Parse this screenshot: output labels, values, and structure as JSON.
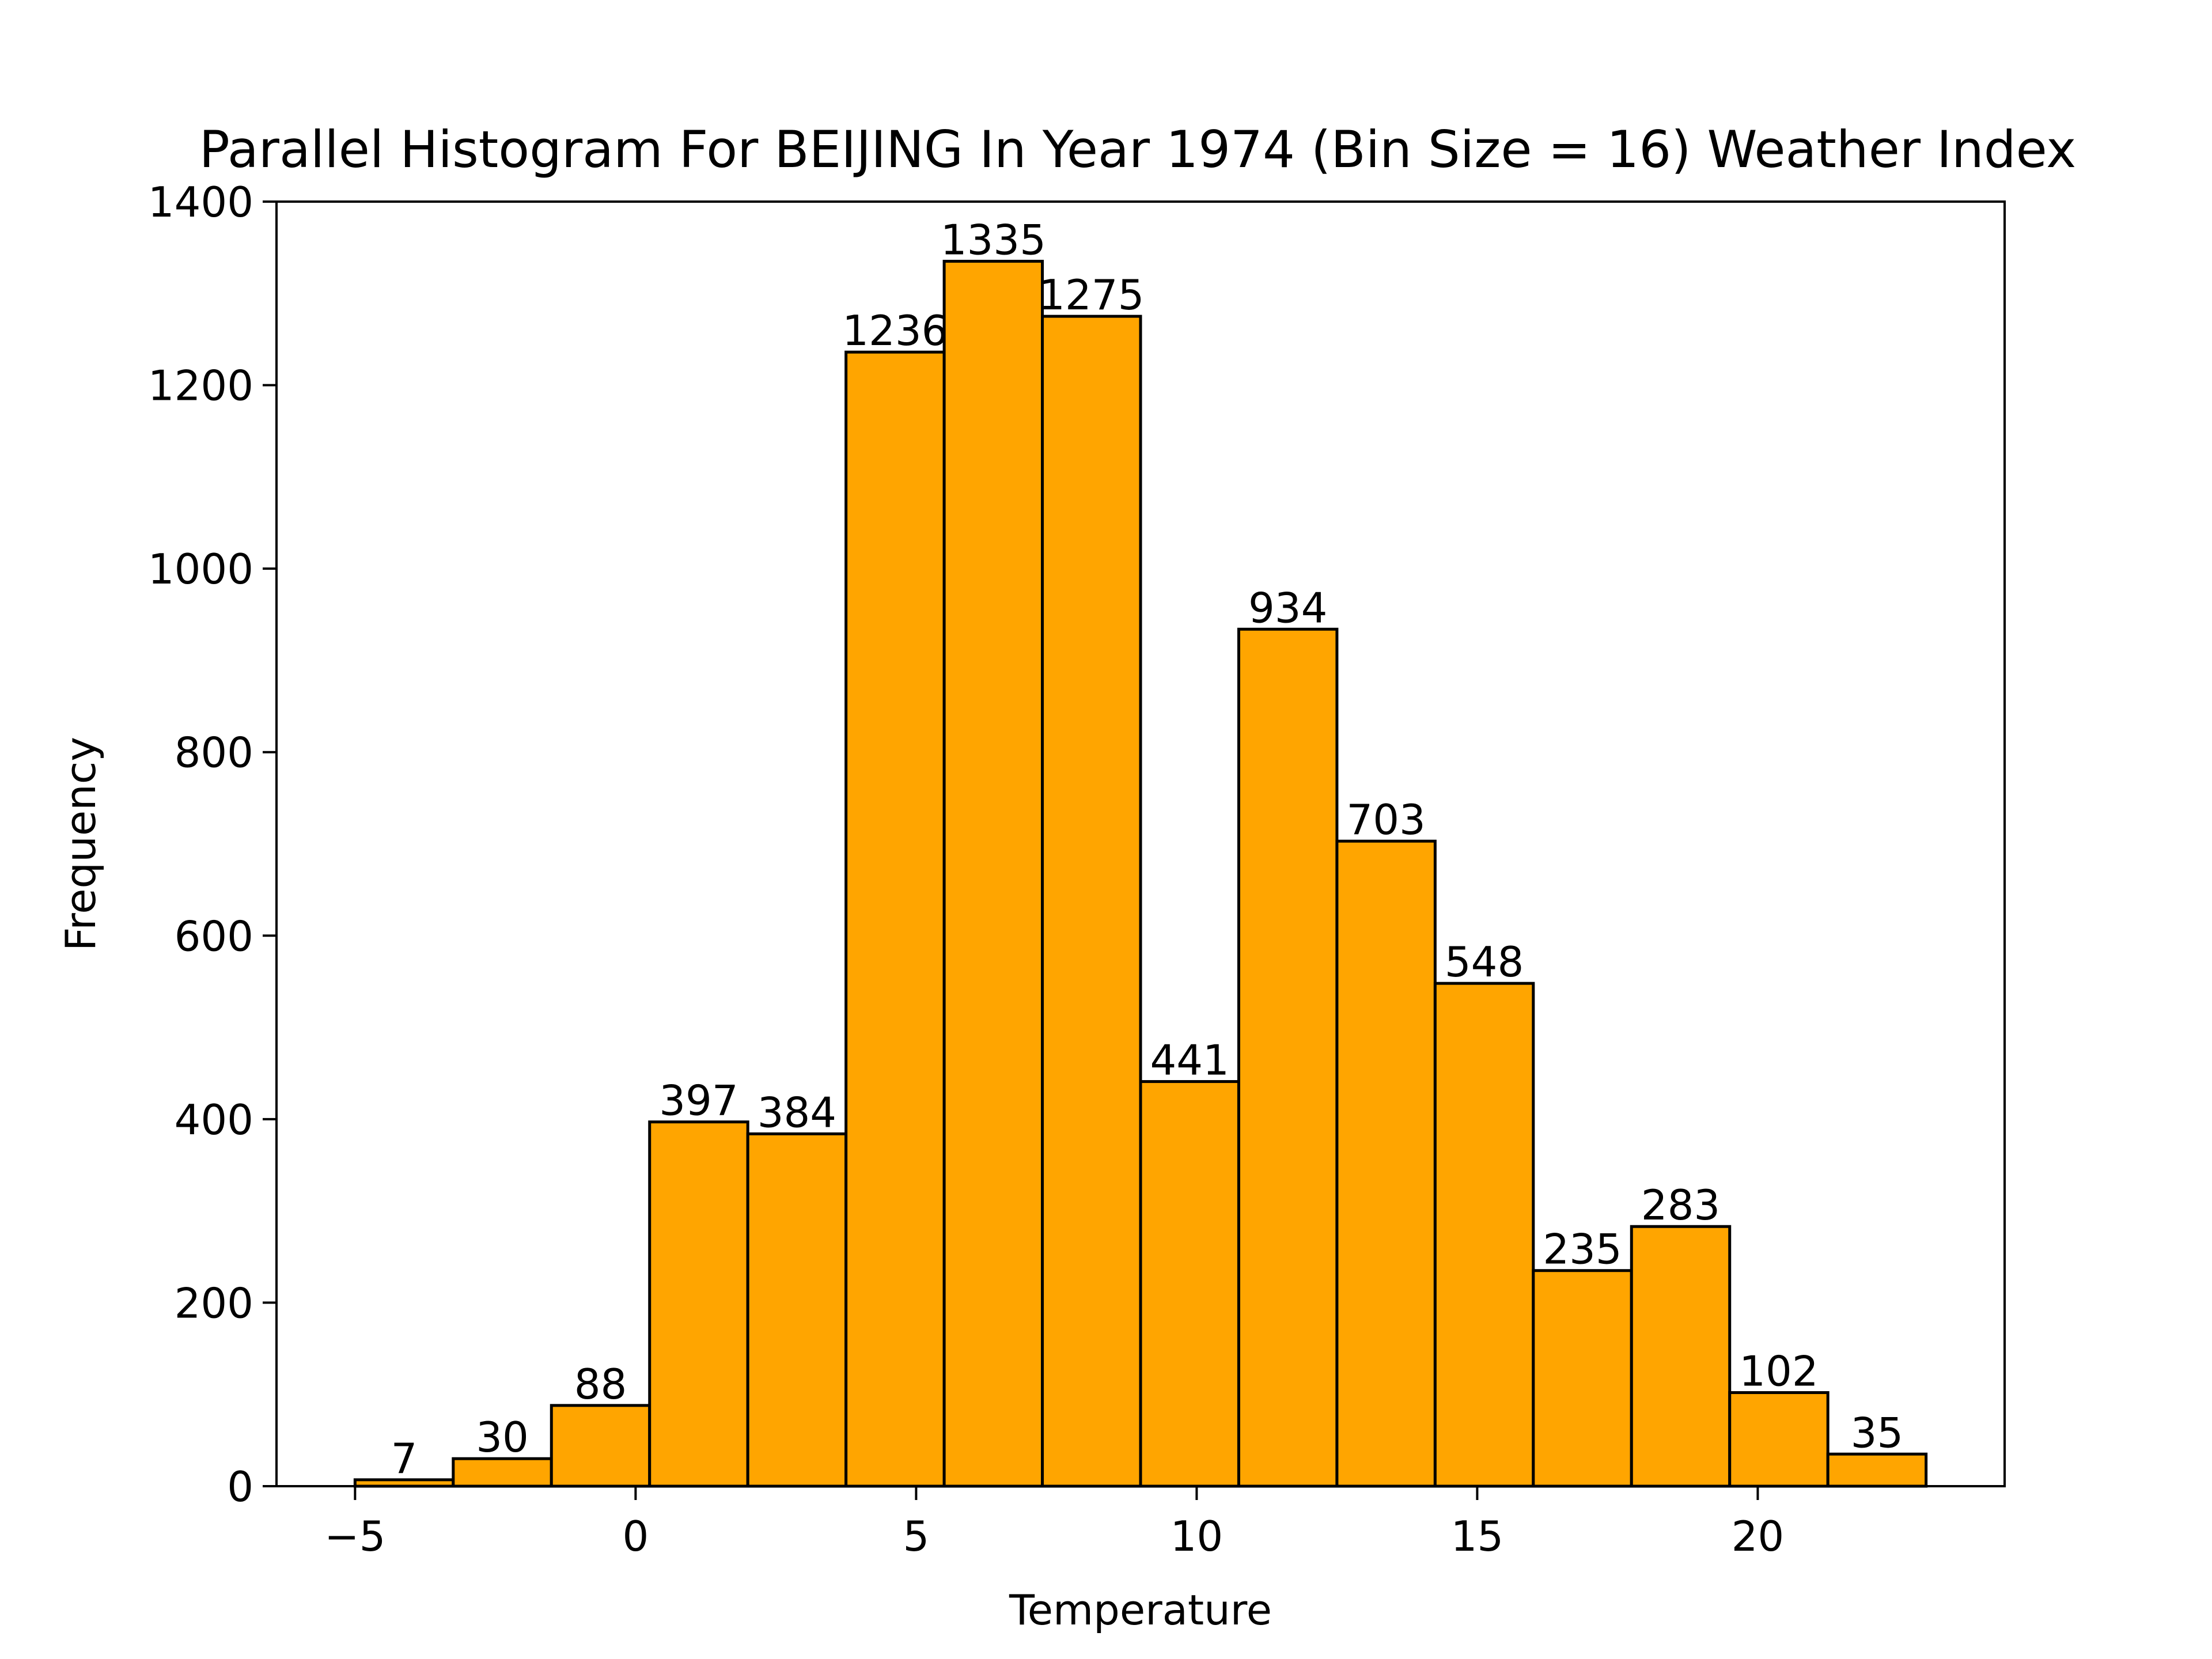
{
  "chart_data": {
    "type": "bar",
    "title": "Parallel Histogram For BEIJING In Year 1974 (Bin Size = 16) Weather Index",
    "xlabel": "Temperature",
    "ylabel": "Frequency",
    "xlim": [
      -6.4,
      24.4
    ],
    "ylim": [
      0,
      1400
    ],
    "bin_start": -5.0,
    "bin_width": 1.75,
    "values": [
      7,
      30,
      88,
      397,
      384,
      1236,
      1335,
      1275,
      441,
      934,
      703,
      548,
      235,
      283,
      102,
      35
    ],
    "x_ticks": [
      -5,
      0,
      5,
      10,
      15,
      20
    ],
    "x_tick_labels": [
      "−5",
      "0",
      "5",
      "10",
      "15",
      "20"
    ],
    "y_ticks": [
      0,
      200,
      400,
      600,
      800,
      1000,
      1200,
      1400
    ],
    "y_tick_labels": [
      "0",
      "200",
      "400",
      "600",
      "800",
      "1000",
      "1200",
      "1400"
    ],
    "bar_color": "#ffa500",
    "edge_color": "#000000",
    "grid": false,
    "legend": "none"
  }
}
